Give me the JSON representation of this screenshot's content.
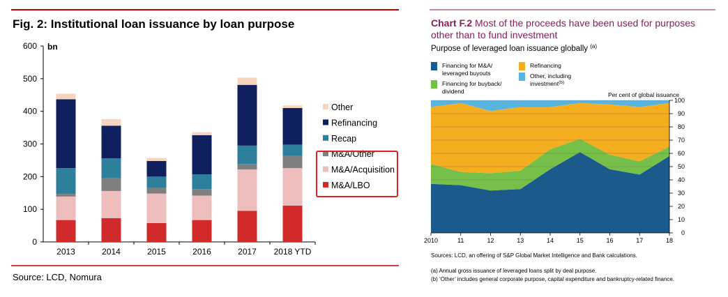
{
  "left_chart": {
    "title": "Fig. 2: Institutional loan issuance by loan purpose",
    "unit_label": "bn",
    "source": "Source: LCD, Nomura",
    "chart_data": {
      "type": "bar",
      "stacked": true,
      "categories": [
        "2013",
        "2014",
        "2015",
        "2016",
        "2017",
        "2018 YTD"
      ],
      "ylim": [
        0,
        600
      ],
      "yticks": [
        "0",
        "100",
        "200",
        "300",
        "400",
        "500",
        "600"
      ],
      "grid": false,
      "legend_position": "right",
      "series": [
        {
          "name": "M&A/LBO",
          "color": "#d12a2a",
          "values": [
            67,
            73,
            58,
            67,
            95,
            111
          ]
        },
        {
          "name": "M&A/Acquisition",
          "color": "#eebebe",
          "values": [
            72,
            83,
            90,
            75,
            127,
            115
          ]
        },
        {
          "name": "M&A/Other",
          "color": "#7f7f7f",
          "values": [
            8,
            39,
            17,
            20,
            17,
            37
          ]
        },
        {
          "name": "Recap",
          "color": "#2e7f9c",
          "values": [
            79,
            61,
            35,
            45,
            56,
            35
          ]
        },
        {
          "name": "Refinancing",
          "color": "#10205e",
          "values": [
            211,
            100,
            48,
            120,
            186,
            112
          ]
        },
        {
          "name": "Other",
          "color": "#f7d4bc",
          "values": [
            17,
            20,
            9,
            9,
            22,
            8
          ]
        }
      ],
      "highlighted_series": [
        "M&A/Other",
        "M&A/Acquisition",
        "M&A/LBO"
      ]
    }
  },
  "right_chart": {
    "title_prefix": "Chart F.2",
    "title_text": "Most of the proceeds have been used for purposes other than to fund investment",
    "subtitle": "Purpose of leveraged loan issuance globally",
    "subtitle_note": "(a)",
    "axis_note": "Per cent of global issuance",
    "source": "Sources: LCD, an offering of S&P Global Market Intelligence and Bank calculations.",
    "footnote_a": "(a)  Annual gross issuance of leveraged loans split by deal purpose.",
    "footnote_b": "(b)  ‘Other’ includes general corporate purpose, capital expenditure and bankruptcy-related finance.",
    "legend": [
      {
        "line1": "Financing for M&A/",
        "line2": "leveraged buyouts",
        "color": "#1a5a8c"
      },
      {
        "line1": "Refinancing",
        "line2": "",
        "color": "#f5ae20"
      },
      {
        "line1": "Financing for buyback/",
        "line2": "dividend",
        "color": "#76c04a"
      },
      {
        "line1": "Other, including",
        "line2": "investment",
        "note": "(b)",
        "color": "#5ab4e0"
      }
    ],
    "chart_data": {
      "type": "area",
      "stacked": true,
      "x": [
        "2010",
        "11",
        "12",
        "13",
        "14",
        "15",
        "16",
        "17",
        "18"
      ],
      "ylim": [
        0,
        100
      ],
      "yticks": [
        "0",
        "10",
        "20",
        "30",
        "40",
        "50",
        "60",
        "70",
        "80",
        "90",
        "100"
      ],
      "y_axis_side": "right",
      "grid": true,
      "series": [
        {
          "name": "Financing for M&A/leveraged buyouts",
          "color": "#1a5a8c",
          "values": [
            37,
            36,
            32,
            33,
            48,
            61,
            48,
            44,
            58
          ]
        },
        {
          "name": "Financing for buyback/dividend",
          "color": "#76c04a",
          "values": [
            15,
            10,
            13,
            14,
            15,
            10,
            11,
            10,
            7
          ]
        },
        {
          "name": "Refinancing",
          "color": "#f5ae20",
          "values": [
            43,
            52,
            47,
            48,
            32,
            27,
            38,
            41,
            33
          ]
        },
        {
          "name": "Other, including investment",
          "color": "#5ab4e0",
          "values": [
            5,
            2,
            8,
            5,
            5,
            2,
            3,
            5,
            2
          ]
        }
      ]
    }
  }
}
